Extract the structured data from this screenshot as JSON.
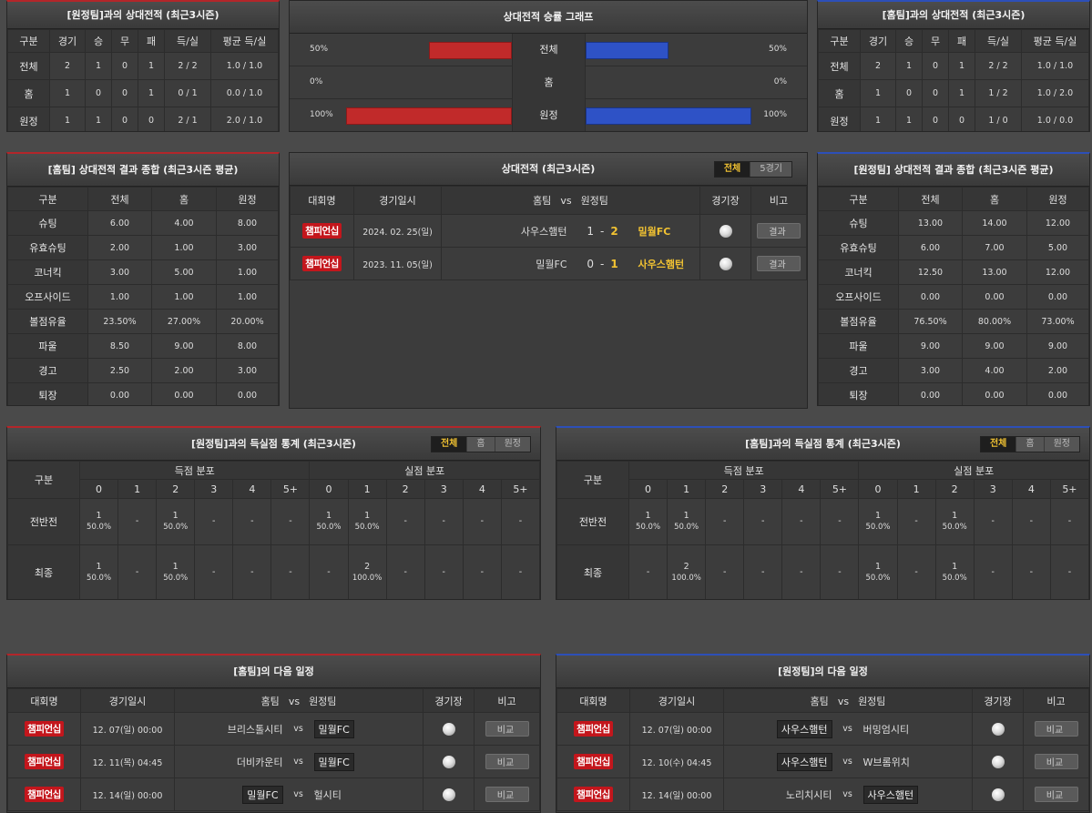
{
  "h2h_home": {
    "title": "[원정팀]과의 상대전적 (최근3시즌)",
    "headers": [
      "구분",
      "경기",
      "승",
      "무",
      "패",
      "득/실",
      "평균 득/실"
    ],
    "rows": [
      [
        "전체",
        "2",
        "1",
        "0",
        "1",
        "2 / 2",
        "1.0 / 1.0"
      ],
      [
        "홈",
        "1",
        "0",
        "0",
        "1",
        "0 / 1",
        "0.0 / 1.0"
      ],
      [
        "원정",
        "1",
        "1",
        "0",
        "0",
        "2 / 1",
        "2.0 / 1.0"
      ]
    ]
  },
  "graph": {
    "title": "상대전적 승률 그래프",
    "rows": [
      {
        "label": "전체",
        "left_pct": "50%",
        "right_pct": "50%",
        "left_val": 50,
        "right_val": 50
      },
      {
        "label": "홈",
        "left_pct": "0%",
        "right_pct": "0%",
        "left_val": 0,
        "right_val": 0
      },
      {
        "label": "원정",
        "left_pct": "100%",
        "right_pct": "100%",
        "left_val": 100,
        "right_val": 100
      }
    ]
  },
  "h2h_away": {
    "title": "[홈팀]과의 상대전적 (최근3시즌)",
    "headers": [
      "구분",
      "경기",
      "승",
      "무",
      "패",
      "득/실",
      "평균 득/실"
    ],
    "rows": [
      [
        "전체",
        "2",
        "1",
        "0",
        "1",
        "2 / 2",
        "1.0 / 1.0"
      ],
      [
        "홈",
        "1",
        "0",
        "0",
        "1",
        "1 / 2",
        "1.0 / 2.0"
      ],
      [
        "원정",
        "1",
        "1",
        "0",
        "0",
        "1 / 0",
        "1.0 / 0.0"
      ]
    ]
  },
  "summary_home": {
    "title": "[홈팀] 상대전적 결과 종합 (최근3시즌 평균)",
    "headers": [
      "구분",
      "전체",
      "홈",
      "원정"
    ],
    "rows": [
      [
        "슈팅",
        "6.00",
        "4.00",
        "8.00"
      ],
      [
        "유효슈팅",
        "2.00",
        "1.00",
        "3.00"
      ],
      [
        "코너킥",
        "3.00",
        "5.00",
        "1.00"
      ],
      [
        "오프사이드",
        "1.00",
        "1.00",
        "1.00"
      ],
      [
        "볼점유율",
        "23.50%",
        "27.00%",
        "20.00%"
      ],
      [
        "파울",
        "8.50",
        "9.00",
        "8.00"
      ],
      [
        "경고",
        "2.50",
        "2.00",
        "3.00"
      ],
      [
        "퇴장",
        "0.00",
        "0.00",
        "0.00"
      ]
    ]
  },
  "matches": {
    "title": "상대전적 (최근3시즌)",
    "tabs": [
      "전체",
      "5경기"
    ],
    "headers": {
      "league": "대회명",
      "date": "경기일시",
      "home": "홈팀",
      "vs": "vs",
      "away": "원정팀",
      "venue": "경기장",
      "note": "비고"
    },
    "rows": [
      {
        "league": "챔피언십",
        "date": "2024. 02. 25(일)",
        "home": "사우스햄턴",
        "hs": "1",
        "sep": "-",
        "as": "2",
        "away": "밀월FC",
        "winner": "away",
        "btn": "결과"
      },
      {
        "league": "챔피언십",
        "date": "2023. 11. 05(일)",
        "home": "밀월FC",
        "hs": "0",
        "sep": "-",
        "as": "1",
        "away": "사우스햄턴",
        "winner": "away",
        "btn": "결과"
      }
    ]
  },
  "summary_away": {
    "title": "[원정팀] 상대전적 결과 종합 (최근3시즌 평균)",
    "headers": [
      "구분",
      "전체",
      "홈",
      "원정"
    ],
    "rows": [
      [
        "슈팅",
        "13.00",
        "14.00",
        "12.00"
      ],
      [
        "유효슈팅",
        "6.00",
        "7.00",
        "5.00"
      ],
      [
        "코너킥",
        "12.50",
        "13.00",
        "12.00"
      ],
      [
        "오프사이드",
        "0.00",
        "0.00",
        "0.00"
      ],
      [
        "볼점유율",
        "76.50%",
        "80.00%",
        "73.00%"
      ],
      [
        "파울",
        "9.00",
        "9.00",
        "9.00"
      ],
      [
        "경고",
        "3.00",
        "4.00",
        "2.00"
      ],
      [
        "퇴장",
        "0.00",
        "0.00",
        "0.00"
      ]
    ]
  },
  "goals_home": {
    "title": "[원정팀]과의 득실점 통계 (최근3시즌)",
    "tabs": [
      "전체",
      "홈",
      "원정"
    ],
    "head_label": "구분",
    "scored": "득점 분포",
    "conceded": "실점 분포",
    "cols": [
      "0",
      "1",
      "2",
      "3",
      "4",
      "5+"
    ],
    "rows": [
      {
        "label": "전반전",
        "cells": [
          [
            "1",
            "50.0%"
          ],
          [
            "-",
            ""
          ],
          [
            "1",
            "50.0%"
          ],
          [
            "-",
            ""
          ],
          [
            "-",
            ""
          ],
          [
            "-",
            ""
          ],
          [
            "1",
            "50.0%"
          ],
          [
            "1",
            "50.0%"
          ],
          [
            "-",
            ""
          ],
          [
            "-",
            ""
          ],
          [
            "-",
            ""
          ],
          [
            "-",
            ""
          ]
        ]
      },
      {
        "label": "최종",
        "cells": [
          [
            "1",
            "50.0%"
          ],
          [
            "-",
            ""
          ],
          [
            "1",
            "50.0%"
          ],
          [
            "-",
            ""
          ],
          [
            "-",
            ""
          ],
          [
            "-",
            ""
          ],
          [
            "-",
            ""
          ],
          [
            "2",
            "100.0%"
          ],
          [
            "-",
            ""
          ],
          [
            "-",
            ""
          ],
          [
            "-",
            ""
          ],
          [
            "-",
            ""
          ]
        ]
      }
    ]
  },
  "goals_away": {
    "title": "[홈팀]과의 득실점 통계 (최근3시즌)",
    "tabs": [
      "전체",
      "홈",
      "원정"
    ],
    "head_label": "구분",
    "scored": "득점 분포",
    "conceded": "실점 분포",
    "cols": [
      "0",
      "1",
      "2",
      "3",
      "4",
      "5+"
    ],
    "rows": [
      {
        "label": "전반전",
        "cells": [
          [
            "1",
            "50.0%"
          ],
          [
            "1",
            "50.0%"
          ],
          [
            "-",
            ""
          ],
          [
            "-",
            ""
          ],
          [
            "-",
            ""
          ],
          [
            "-",
            ""
          ],
          [
            "1",
            "50.0%"
          ],
          [
            "-",
            ""
          ],
          [
            "1",
            "50.0%"
          ],
          [
            "-",
            ""
          ],
          [
            "-",
            ""
          ],
          [
            "-",
            ""
          ]
        ]
      },
      {
        "label": "최종",
        "cells": [
          [
            "-",
            ""
          ],
          [
            "2",
            "100.0%"
          ],
          [
            "-",
            ""
          ],
          [
            "-",
            ""
          ],
          [
            "-",
            ""
          ],
          [
            "-",
            ""
          ],
          [
            "1",
            "50.0%"
          ],
          [
            "-",
            ""
          ],
          [
            "1",
            "50.0%"
          ],
          [
            "-",
            ""
          ],
          [
            "-",
            ""
          ],
          [
            "-",
            ""
          ]
        ]
      }
    ]
  },
  "next_home": {
    "title": "[홈팀]의 다음 일정",
    "headers": {
      "league": "대회명",
      "date": "경기일시",
      "home": "홈팀",
      "vs": "vs",
      "away": "원정팀",
      "venue": "경기장",
      "note": "비고"
    },
    "rows": [
      {
        "league": "챔피언십",
        "date": "12. 07(일) 00:00",
        "home": "브리스톨시티",
        "vs": "vs",
        "away": "밀월FC",
        "focus": "away",
        "btn": "비교"
      },
      {
        "league": "챔피언십",
        "date": "12. 11(목) 04:45",
        "home": "더비카운티",
        "vs": "vs",
        "away": "밀월FC",
        "focus": "away",
        "btn": "비교"
      },
      {
        "league": "챔피언십",
        "date": "12. 14(일) 00:00",
        "home": "밀월FC",
        "vs": "vs",
        "away": "헐시티",
        "focus": "home",
        "btn": "비교"
      }
    ]
  },
  "next_away": {
    "title": "[원정팀]의 다음 일정",
    "headers": {
      "league": "대회명",
      "date": "경기일시",
      "home": "홈팀",
      "vs": "vs",
      "away": "원정팀",
      "venue": "경기장",
      "note": "비고"
    },
    "rows": [
      {
        "league": "챔피언십",
        "date": "12. 07(일) 00:00",
        "home": "사우스햄턴",
        "vs": "vs",
        "away": "버밍엄시티",
        "focus": "home",
        "btn": "비교"
      },
      {
        "league": "챔피언십",
        "date": "12. 10(수) 04:45",
        "home": "사우스햄턴",
        "vs": "vs",
        "away": "W브롬위치",
        "focus": "home",
        "btn": "비교"
      },
      {
        "league": "챔피언십",
        "date": "12. 14(일) 00:00",
        "home": "노리치시티",
        "vs": "vs",
        "away": "사우스햄턴",
        "focus": "away",
        "btn": "비교"
      }
    ]
  },
  "colors": {
    "home": "#b3262a",
    "away": "#2d4fb8",
    "accent": "#f1c232",
    "badge": "#c3161c"
  }
}
